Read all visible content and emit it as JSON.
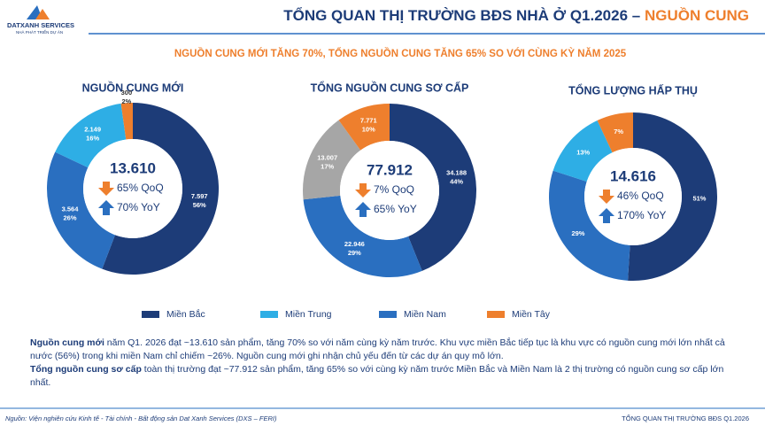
{
  "header": {
    "logo_name": "DATXANH SERVICES",
    "logo_tagline": "NHÀ PHÁT TRIỂN DỰ ÁN",
    "title": "TỔNG QUAN THỊ TRƯỜNG BĐS NHÀ Ở Q1.2026 – ",
    "title_highlight": "NGUỒN CUNG"
  },
  "subtitle": "NGUỒN CUNG MỚI TĂNG 70%, TỔNG NGUỒN CUNG TĂNG 65% SO VỚI CÙNG KỲ NĂM 2025",
  "chart_data": [
    {
      "type": "donut",
      "title": "NGUỒN CUNG MỚI",
      "total": "13.610",
      "qoq": "65% QoQ",
      "yoy": "70% YoY",
      "values": [
        7597,
        3564,
        2149,
        300
      ],
      "value_labels": [
        "7.597",
        "3.564",
        "2.149",
        "300"
      ],
      "percent_labels": [
        "56%",
        "26%",
        "16%",
        "2%"
      ],
      "colors": [
        "#1d3c78",
        "#2a6fc0",
        "#2eaee5",
        "#ee7f2d"
      ]
    },
    {
      "type": "donut",
      "title": "TỔNG NGUỒN CUNG SƠ CẤP",
      "total": "77.912",
      "qoq": "7% QoQ",
      "yoy": "65% YoY",
      "values": [
        34188,
        22946,
        13007,
        7771
      ],
      "value_labels": [
        "34.188",
        "22.946",
        "13.007",
        "7.771"
      ],
      "percent_labels": [
        "44%",
        "29%",
        "17%",
        "10%"
      ],
      "colors": [
        "#1d3c78",
        "#2a6fc0",
        "#a6a6a6",
        "#ee7f2d"
      ]
    },
    {
      "type": "donut",
      "title": "TỔNG LƯỢNG HẤP THỤ",
      "total": "14.616",
      "qoq": "46% QoQ",
      "yoy": "170% YoY",
      "values": [
        51,
        29,
        13,
        7
      ],
      "value_labels": [
        "51%",
        "29%",
        "13%",
        "7%"
      ],
      "colors": [
        "#1d3c78",
        "#2a6fc0",
        "#2eaee5",
        "#ee7f2d"
      ]
    }
  ],
  "legend": [
    {
      "name": "Miền Bắc",
      "color": "#1d3c78"
    },
    {
      "name": "Miền Trung",
      "color": "#2eaee5"
    },
    {
      "name": "Miền Nam",
      "color": "#2a6fc0"
    },
    {
      "name": "Miền Tây",
      "color": "#ee7f2d"
    }
  ],
  "body": [
    {
      "bold": "Nguồn cung mới",
      "text": " năm Q1. 2026 đạt ~13.610 sản phẩm, tăng 70% so với năm cùng kỳ năm trước. Khu vực miền Bắc tiếp tục là khu vực có nguồn cung mới lớn nhất cả nước (56%) trong khi miền Nam chỉ chiếm ~26%. Nguồn cung mới ghi nhận chủ yếu đến từ các dự án quy mô lớn."
    },
    {
      "bold": "Tổng nguồn cung sơ cấp",
      "text": " toàn thị trường đạt ~77.912 sản phẩm, tăng 65% so với cùng kỳ năm trước Miền Bắc và Miền Nam là 2 thị trường có nguồn cung sơ cấp lớn nhất."
    }
  ],
  "footer": {
    "source": "Nguồn: Viện nghiên cứu Kinh tế - Tài chính - Bất động sản Dat Xanh Services (DXS – FERI)",
    "right": "TỔNG QUAN THỊ TRƯỜNG BĐS Q1.2026"
  }
}
